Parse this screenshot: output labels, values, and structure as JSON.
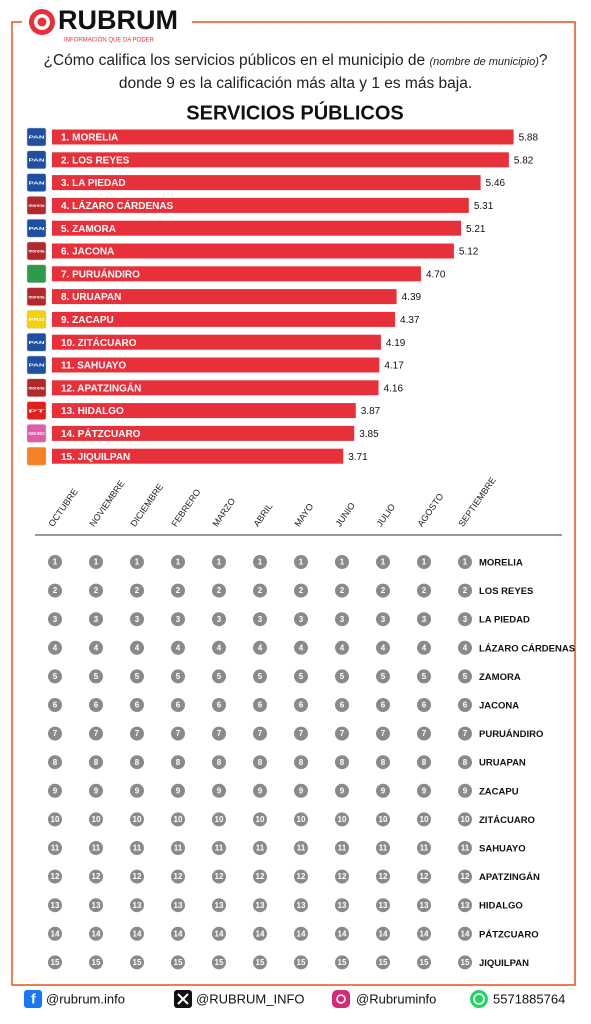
{
  "header": {
    "logo": "RUBRUM",
    "tagline": "INFORMACIÓN QUE DA PODER",
    "question_start": "¿Cómo califica los servicios públicos en el municipio de ",
    "question_note": "(nombre de municipio)",
    "question_end": "? donde 9 es la calificación más alta y 1 es más baja."
  },
  "chart_data": [
    {
      "type": "hbar",
      "title": "SERVICIOS PÚBLICOS",
      "color": "#e8303a",
      "categories": [
        "1. MORELIA",
        "2. LOS REYES",
        "3. LA PIEDAD",
        "4. LÁZARO CÁRDENAS",
        "5. ZAMORA",
        "6. JACONA",
        "7. PURUÁNDIRO",
        "8. URUAPAN",
        "9. ZACAPU",
        "10. ZITÁCUARO",
        "11. SAHUAYO",
        "12. APATZINGÁN",
        "13. HIDALGO",
        "14. PÁTZCUARO",
        "15. JIQUILPAN"
      ],
      "values": [
        5.88,
        5.82,
        5.46,
        5.31,
        5.21,
        5.12,
        4.7,
        4.39,
        4.37,
        4.19,
        4.17,
        4.16,
        3.87,
        3.85,
        3.71
      ],
      "value_labels": [
        "5.88",
        "5.82",
        "5.46",
        "5.31",
        "5.21",
        "5.12",
        "4.70",
        "4.39",
        "4.37",
        "4.19",
        "4.17",
        "4.16",
        "3.87",
        "3.85",
        "3.71"
      ],
      "party_icons": [
        {
          "text": "PAN",
          "color": "#1f4fa0"
        },
        {
          "text": "PAN",
          "color": "#1f4fa0"
        },
        {
          "text": "PAN",
          "color": "#1f4fa0"
        },
        {
          "text": "morena",
          "color": "#b3282d"
        },
        {
          "text": "PAN",
          "color": "#1f4fa0"
        },
        {
          "text": "morena",
          "color": "#b3282d"
        },
        {
          "color": "#2e9a4a"
        },
        {
          "text": "morena",
          "color": "#b3282d"
        },
        {
          "text": "PRD",
          "color": "#f5d200"
        },
        {
          "text": "PAN",
          "color": "#1f4fa0"
        },
        {
          "text": "PAN",
          "color": "#1f4fa0"
        },
        {
          "text": "morena",
          "color": "#b3282d"
        },
        {
          "text": "PT",
          "color": "#e0201b"
        },
        {
          "text": "FUERZA MÉXICO",
          "color": "#e35aa8"
        },
        {
          "color": "#f58025"
        }
      ]
    },
    {
      "type": "bump",
      "color": "#8a8a8a",
      "categories": [
        "OCTUBRE",
        "NOVIEMBRE",
        "DICIEMBRE",
        "FEBRERO",
        "MARZO",
        "ABRIL",
        "MAYO",
        "JUNIO",
        "JULIO",
        "AGOSTO",
        "SEPTIEMBRE"
      ],
      "ranks": [
        1,
        2,
        3,
        4,
        5,
        6,
        7,
        8,
        9,
        10,
        11,
        12,
        13,
        14,
        15
      ],
      "labels": [
        "MORELIA",
        "LOS REYES",
        "LA PIEDAD",
        "LÁZARO CÁRDENAS",
        "ZAMORA",
        "JACONA",
        "PURUÁNDIRO",
        "URUAPAN",
        "ZACAPU",
        "ZITÁCUARO",
        "SAHUAYO",
        "APATZINGÁN",
        "HIDALGO",
        "PÁTZCUARO",
        "JIQUILPAN"
      ]
    }
  ],
  "footer": {
    "facebook": "@rubrum.info",
    "x": "@RUBRUM_INFO",
    "instagram": "@Rubruminfo",
    "whatsapp": "5571885764"
  }
}
